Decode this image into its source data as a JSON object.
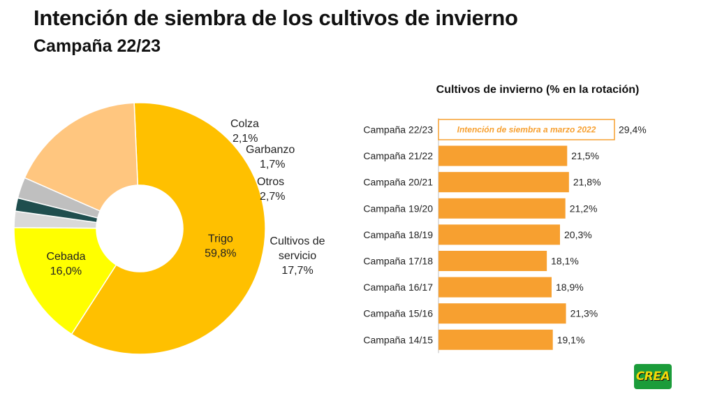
{
  "header": {
    "title": "Intención de siembra de los cultivos de invierno",
    "subtitle": "Campaña 22/23"
  },
  "logo": {
    "text": "CREA",
    "bg_color": "#1b9c3a",
    "text_color": "#f5d90a"
  },
  "chart_data": [
    {
      "type": "pie",
      "variant": "donut",
      "title": "",
      "slices": [
        {
          "label": "Trigo",
          "value": 59.8,
          "value_label": "59,8%",
          "color": "#ffc000"
        },
        {
          "label": "Cebada",
          "value": 16.0,
          "value_label": "16,0%",
          "color": "#ffff00"
        },
        {
          "label": "Colza",
          "value": 2.1,
          "value_label": "2,1%",
          "color": "#d9d9d9"
        },
        {
          "label": "Garbanzo",
          "value": 1.7,
          "value_label": "1,7%",
          "color": "#1f4e4e"
        },
        {
          "label": "Otros",
          "value": 2.7,
          "value_label": "2,7%",
          "color": "#bfbfbf"
        },
        {
          "label": "Cultivos de servicio",
          "label_lines": [
            "Cultivos de",
            "servicio"
          ],
          "value": 17.7,
          "value_label": "17,7%",
          "color": "#ffc67f"
        }
      ]
    },
    {
      "type": "bar",
      "orientation": "horizontal",
      "title": "Cultivos de invierno (% en la rotación)",
      "bar_color": "#f7a030",
      "xlim": [
        0,
        32
      ],
      "categories": [
        "Campaña 22/23",
        "Campaña 21/22",
        "Campaña 20/21",
        "Campaña 19/20",
        "Campaña 18/19",
        "Campaña 17/18",
        "Campaña 16/17",
        "Campaña 15/16",
        "Campaña 14/15"
      ],
      "values": [
        29.4,
        21.5,
        21.8,
        21.2,
        20.3,
        18.1,
        18.9,
        21.3,
        19.1
      ],
      "value_labels": [
        "29,4%",
        "21,5%",
        "21,8%",
        "21,2%",
        "20,3%",
        "18,1%",
        "18,9%",
        "21,3%",
        "19,1%"
      ],
      "annotation": {
        "category": "Campaña 22/23",
        "text": "Intención de siembra a marzo 2022",
        "style": "outlined",
        "text_color": "#f7a030"
      }
    }
  ]
}
